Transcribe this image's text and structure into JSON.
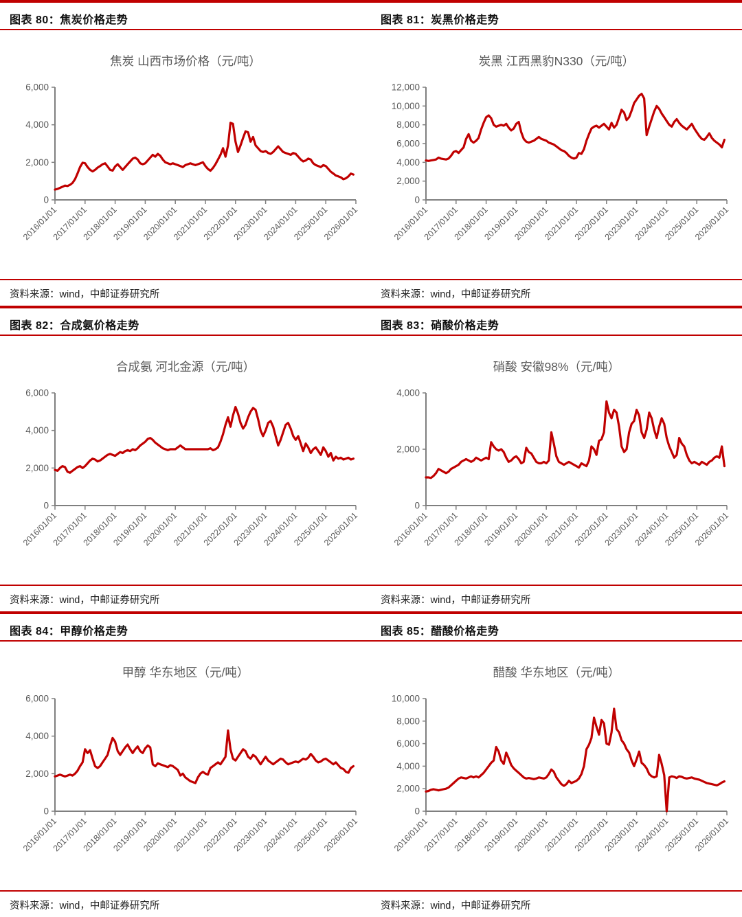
{
  "colors": {
    "accent_red": "#c00000",
    "series_red": "#c00000",
    "axis_gray": "#7f7f7f",
    "label_gray": "#595959"
  },
  "source_note": "资料来源：wind，中邮证券研究所",
  "x_tick_labels": [
    "2016/01/01",
    "2017/01/01",
    "2018/01/01",
    "2019/01/01",
    "2020/01/01",
    "2021/01/01",
    "2022/01/01",
    "2023/01/01",
    "2024/01/01",
    "2025/01/01",
    "2026/01/01"
  ],
  "figures": [
    {
      "header": "图表 80：焦炭价格走势",
      "source": "资料来源：wind，中邮证券研究所",
      "chart_data": {
        "type": "line",
        "title": "焦炭 山西市场价格（元/吨）",
        "series_name": "焦炭 山西市场价格",
        "unit": "元/吨",
        "y_min": 0,
        "y_max": 6000,
        "y_step": 2000,
        "line_color": "#c00000",
        "grid": false,
        "legend": "none",
        "x_tick_labels": [
          "2016/01/01",
          "2017/01/01",
          "2018/01/01",
          "2019/01/01",
          "2020/01/01",
          "2021/01/01",
          "2022/01/01",
          "2023/01/01",
          "2024/01/01",
          "2025/01/01",
          "2026/01/01"
        ],
        "frequency": "monthly",
        "values": [
          550,
          580,
          640,
          700,
          760,
          740,
          800,
          900,
          1100,
          1400,
          1750,
          1980,
          1950,
          1750,
          1600,
          1520,
          1600,
          1720,
          1800,
          1900,
          1950,
          1780,
          1600,
          1560,
          1780,
          1900,
          1750,
          1600,
          1750,
          1900,
          2050,
          2200,
          2250,
          2150,
          1950,
          1900,
          1950,
          2100,
          2250,
          2400,
          2300,
          2450,
          2350,
          2150,
          2000,
          1950,
          1900,
          1950,
          1900,
          1850,
          1800,
          1750,
          1850,
          1900,
          1950,
          1900,
          1850,
          1900,
          1950,
          2000,
          1800,
          1650,
          1550,
          1700,
          1900,
          2150,
          2400,
          2750,
          2300,
          2900,
          4100,
          4050,
          3100,
          2550,
          2900,
          3300,
          3650,
          3600,
          3100,
          3350,
          2900,
          2750,
          2600,
          2550,
          2600,
          2500,
          2450,
          2550,
          2700,
          2850,
          2700,
          2550,
          2500,
          2450,
          2400,
          2500,
          2450,
          2300,
          2150,
          2050,
          2100,
          2200,
          2150,
          1950,
          1850,
          1800,
          1750,
          1850,
          1800,
          1650,
          1500,
          1400,
          1300,
          1250,
          1200,
          1100,
          1150,
          1250,
          1400,
          1350
        ]
      }
    },
    {
      "header": "图表 81：炭黑价格走势",
      "source": "资料来源：wind，中邮证券研究所",
      "chart_data": {
        "type": "line",
        "title": "炭黑 江西黑豹N330（元/吨）",
        "series_name": "炭黑 江西黑豹N330",
        "unit": "元/吨",
        "y_min": 0,
        "y_max": 12000,
        "y_step": 2000,
        "line_color": "#c00000",
        "grid": false,
        "legend": "none",
        "x_tick_labels": [
          "2016/01/01",
          "2017/01/01",
          "2018/01/01",
          "2019/01/01",
          "2020/01/01",
          "2021/01/01",
          "2022/01/01",
          "2023/01/01",
          "2024/01/01",
          "2025/01/01",
          "2026/01/01"
        ],
        "frequency": "monthly",
        "values": [
          4200,
          4150,
          4200,
          4250,
          4300,
          4500,
          4400,
          4350,
          4300,
          4400,
          4700,
          5100,
          5200,
          5000,
          5300,
          5600,
          6500,
          7000,
          6300,
          6100,
          6300,
          6600,
          7500,
          8200,
          8800,
          9000,
          8700,
          8000,
          7800,
          7900,
          8000,
          7900,
          8100,
          7700,
          7400,
          7600,
          8100,
          8300,
          7200,
          6500,
          6200,
          6100,
          6200,
          6300,
          6500,
          6700,
          6500,
          6400,
          6300,
          6100,
          6000,
          5900,
          5700,
          5500,
          5300,
          5200,
          5000,
          4700,
          4500,
          4400,
          4500,
          5000,
          4900,
          5400,
          6300,
          7000,
          7600,
          7800,
          7900,
          7700,
          7900,
          8100,
          7800,
          7500,
          8200,
          7700,
          8000,
          8800,
          9600,
          9300,
          8500,
          8800,
          9500,
          10300,
          10700,
          11100,
          11300,
          10800,
          6900,
          7800,
          8600,
          9400,
          10000,
          9700,
          9200,
          8800,
          8400,
          8000,
          7800,
          8300,
          8600,
          8200,
          7900,
          7700,
          7500,
          7800,
          8100,
          7600,
          7200,
          6800,
          6500,
          6400,
          6700,
          7100,
          6600,
          6300,
          6100,
          5900,
          5600,
          6400
        ]
      }
    },
    {
      "header": "图表 82：合成氨价格走势",
      "source": "资料来源：wind，中邮证券研究所",
      "chart_data": {
        "type": "line",
        "title": "合成氨 河北金源（元/吨）",
        "series_name": "合成氨 河北金源",
        "unit": "元/吨",
        "y_min": 0,
        "y_max": 6000,
        "y_step": 2000,
        "line_color": "#c00000",
        "grid": false,
        "legend": "none",
        "x_tick_labels": [
          "2016/01/01",
          "2017/01/01",
          "2018/01/01",
          "2019/01/01",
          "2020/01/01",
          "2021/01/01",
          "2022/01/01",
          "2023/01/01",
          "2024/01/01",
          "2025/01/01",
          "2026/01/01"
        ],
        "frequency": "monthly",
        "values": [
          1900,
          1850,
          2000,
          2100,
          2050,
          1800,
          1750,
          1850,
          1950,
          2050,
          2100,
          2000,
          2100,
          2250,
          2400,
          2500,
          2450,
          2350,
          2400,
          2500,
          2600,
          2700,
          2750,
          2700,
          2650,
          2750,
          2850,
          2800,
          2900,
          2950,
          2900,
          3000,
          2950,
          3050,
          3200,
          3300,
          3400,
          3550,
          3600,
          3500,
          3350,
          3250,
          3150,
          3050,
          3000,
          2950,
          3000,
          3000,
          3000,
          3100,
          3200,
          3100,
          3000,
          3000,
          3000,
          3000,
          3000,
          3000,
          3000,
          3000,
          3000,
          3000,
          3050,
          2950,
          3000,
          3100,
          3400,
          3800,
          4300,
          4700,
          4200,
          4800,
          5250,
          4900,
          4400,
          4100,
          4300,
          4700,
          5000,
          5200,
          5100,
          4600,
          4000,
          3700,
          4000,
          4400,
          4500,
          4200,
          3700,
          3200,
          3500,
          3900,
          4300,
          4400,
          4100,
          3700,
          3500,
          3700,
          3300,
          2900,
          3300,
          3100,
          2800,
          3000,
          3100,
          2900,
          2700,
          3100,
          2900,
          2600,
          2800,
          2400,
          2600,
          2500,
          2550,
          2450,
          2500,
          2550,
          2450,
          2500
        ]
      }
    },
    {
      "header": "图表 83：硝酸价格走势",
      "source": "资料来源：wind，中邮证券研究所",
      "chart_data": {
        "type": "line",
        "title": "硝酸 安徽98%（元/吨）",
        "series_name": "硝酸 安徽98%",
        "unit": "元/吨",
        "y_min": 0,
        "y_max": 4000,
        "y_step": 2000,
        "line_color": "#c00000",
        "grid": false,
        "legend": "none",
        "x_tick_labels": [
          "2016/01/01",
          "2017/01/01",
          "2018/01/01",
          "2019/01/01",
          "2020/01/01",
          "2021/01/01",
          "2022/01/01",
          "2023/01/01",
          "2024/01/01",
          "2025/01/01",
          "2026/01/01"
        ],
        "frequency": "monthly",
        "values": [
          1000,
          1000,
          980,
          1050,
          1150,
          1300,
          1250,
          1200,
          1150,
          1200,
          1300,
          1350,
          1400,
          1450,
          1550,
          1600,
          1650,
          1600,
          1550,
          1600,
          1700,
          1650,
          1600,
          1650,
          1700,
          1650,
          2250,
          2100,
          2000,
          1950,
          2000,
          1900,
          1700,
          1550,
          1600,
          1700,
          1750,
          1650,
          1500,
          1550,
          2050,
          1900,
          1850,
          1700,
          1550,
          1500,
          1500,
          1550,
          1500,
          1600,
          2600,
          2200,
          1750,
          1550,
          1500,
          1450,
          1500,
          1550,
          1500,
          1450,
          1400,
          1350,
          1500,
          1450,
          1400,
          1600,
          2100,
          2000,
          1800,
          2300,
          2350,
          2600,
          3700,
          3300,
          3100,
          3400,
          3300,
          2800,
          2100,
          1900,
          2000,
          2600,
          2900,
          3000,
          3400,
          3200,
          2600,
          2400,
          2700,
          3300,
          3100,
          2700,
          2400,
          2800,
          3100,
          2900,
          2400,
          2100,
          1900,
          1700,
          1800,
          2400,
          2200,
          2100,
          1800,
          1600,
          1500,
          1550,
          1500,
          1450,
          1550,
          1500,
          1450,
          1550,
          1600,
          1700,
          1750,
          1700,
          2100,
          1400
        ]
      }
    },
    {
      "header": "图表 84：甲醇价格走势",
      "source": "资料来源：wind，中邮证券研究所",
      "chart_data": {
        "type": "line",
        "title": "甲醇 华东地区（元/吨）",
        "series_name": "甲醇 华东地区",
        "unit": "元/吨",
        "y_min": 0,
        "y_max": 6000,
        "y_step": 2000,
        "line_color": "#c00000",
        "grid": false,
        "legend": "none",
        "x_tick_labels": [
          "2016/01/01",
          "2017/01/01",
          "2018/01/01",
          "2019/01/01",
          "2020/01/01",
          "2021/01/01",
          "2022/01/01",
          "2023/01/01",
          "2024/01/01",
          "2025/01/01",
          "2026/01/01"
        ],
        "frequency": "monthly",
        "values": [
          1850,
          1900,
          1950,
          1900,
          1850,
          1900,
          1950,
          1900,
          2000,
          2150,
          2400,
          2600,
          3300,
          3100,
          3250,
          2800,
          2400,
          2300,
          2400,
          2600,
          2800,
          3000,
          3500,
          3900,
          3700,
          3200,
          3000,
          3200,
          3400,
          3550,
          3300,
          3100,
          3300,
          3450,
          3200,
          3100,
          3350,
          3500,
          3400,
          2500,
          2400,
          2550,
          2500,
          2450,
          2400,
          2350,
          2450,
          2400,
          2300,
          2200,
          1900,
          2000,
          1800,
          1700,
          1600,
          1550,
          1500,
          1800,
          2000,
          2100,
          2000,
          1950,
          2300,
          2400,
          2500,
          2600,
          2500,
          2700,
          2900,
          4300,
          3300,
          2800,
          2700,
          2900,
          3100,
          3300,
          3200,
          2900,
          2800,
          3000,
          2900,
          2700,
          2500,
          2700,
          2900,
          2700,
          2600,
          2500,
          2600,
          2700,
          2800,
          2750,
          2600,
          2500,
          2550,
          2600,
          2650,
          2600,
          2700,
          2800,
          2750,
          2850,
          3050,
          2900,
          2700,
          2600,
          2650,
          2750,
          2800,
          2700,
          2600,
          2500,
          2600,
          2450,
          2300,
          2250,
          2100,
          2050,
          2300,
          2400
        ]
      }
    },
    {
      "header": "图表 85：醋酸价格走势",
      "source": "资料来源：wind，中邮证券研究所",
      "chart_data": {
        "type": "line",
        "title": "醋酸 华东地区（元/吨）",
        "series_name": "醋酸 华东地区",
        "unit": "元/吨",
        "y_min": 0,
        "y_max": 10000,
        "y_step": 2000,
        "line_color": "#c00000",
        "grid": false,
        "legend": "none",
        "x_tick_labels": [
          "2016/01/01",
          "2017/01/01",
          "2018/01/01",
          "2019/01/01",
          "2020/01/01",
          "2021/01/01",
          "2022/01/01",
          "2023/01/01",
          "2024/01/01",
          "2025/01/01",
          "2026/01/01"
        ],
        "frequency": "monthly",
        "values": [
          1750,
          1800,
          1900,
          1950,
          1900,
          1850,
          1900,
          1950,
          2000,
          2100,
          2300,
          2500,
          2700,
          2900,
          3000,
          2950,
          2900,
          3000,
          3100,
          3000,
          3100,
          3000,
          3200,
          3400,
          3700,
          4000,
          4300,
          4500,
          5700,
          5300,
          4500,
          4200,
          5200,
          4700,
          4100,
          3800,
          3600,
          3400,
          3200,
          3000,
          2900,
          2950,
          2900,
          2850,
          2900,
          3000,
          2950,
          2900,
          3000,
          3300,
          3700,
          3500,
          3000,
          2700,
          2400,
          2250,
          2400,
          2700,
          2500,
          2600,
          2700,
          2900,
          3300,
          4000,
          5500,
          5900,
          6500,
          8300,
          7500,
          6800,
          8100,
          7800,
          6000,
          5900,
          7000,
          9100,
          7300,
          7000,
          6300,
          6000,
          5500,
          5200,
          4500,
          4000,
          4600,
          5300,
          4300,
          4100,
          3800,
          3300,
          3100,
          3000,
          3100,
          5000,
          4200,
          3200,
          0,
          3000,
          3100,
          3050,
          2950,
          3100,
          3050,
          2950,
          2900,
          2950,
          3000,
          2900,
          2850,
          2800,
          2700,
          2600,
          2500,
          2450,
          2400,
          2350,
          2300,
          2400,
          2550,
          2650
        ]
      }
    }
  ]
}
